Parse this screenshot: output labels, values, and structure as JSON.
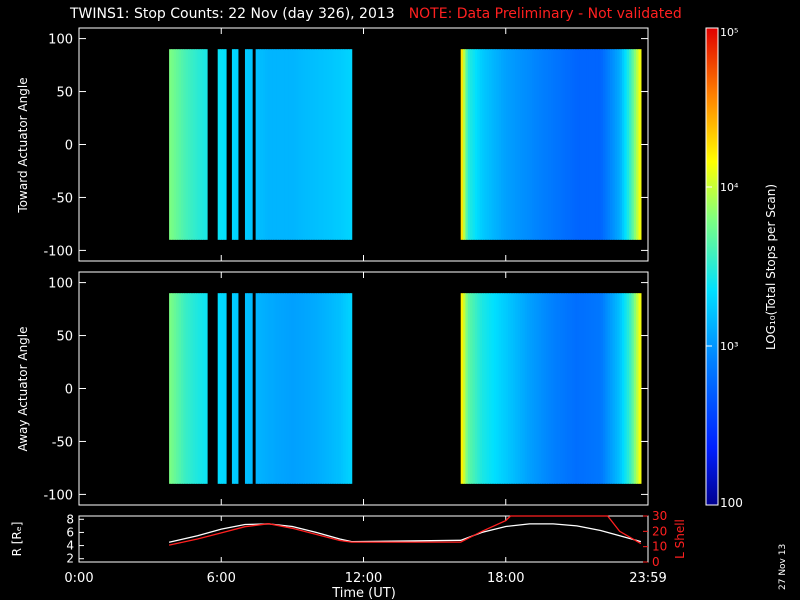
{
  "title": {
    "main": "TWINS1: Stop Counts: 22 Nov (day 326), 2013",
    "note": "NOTE: Data Preliminary - Not validated"
  },
  "stamp": "27 Nov 13",
  "colors": {
    "background": "#000000",
    "axes": "#ffffff",
    "note": "#ff2020",
    "l_shell": "#ff2020",
    "r_line": "#ffffff"
  },
  "chart_data": [
    {
      "type": "heatmap",
      "panel": "toward",
      "ylabel": "Toward Actuator Angle",
      "ylim": [
        -110,
        110
      ],
      "yticks": [
        100,
        50,
        0,
        -50,
        -100
      ],
      "xlim": [
        0,
        24
      ],
      "data_extent": {
        "angle": [
          -90,
          90
        ]
      },
      "coverage_hours": [
        [
          3.8,
          5.4
        ],
        [
          5.85,
          6.2
        ],
        [
          6.45,
          6.7
        ],
        [
          7.0,
          7.3
        ],
        [
          7.45,
          11.5
        ],
        [
          16.1,
          23.7
        ]
      ],
      "gaps_hours": [
        [
          5.4,
          5.85
        ],
        [
          6.2,
          6.45
        ],
        [
          6.7,
          7.0
        ],
        [
          7.3,
          7.45
        ]
      ],
      "log_intensity_profile": {
        "hours": [
          3.8,
          4.5,
          5.3,
          6.2,
          7.0,
          8.0,
          9.0,
          10.0,
          11.0,
          11.5,
          16.1,
          16.4,
          17.0,
          18.0,
          19.0,
          20.0,
          21.0,
          22.0,
          22.8,
          23.3,
          23.7
        ],
        "log_counts": [
          3.8,
          3.6,
          3.45,
          3.35,
          3.25,
          3.15,
          3.15,
          3.2,
          3.25,
          3.3,
          4.4,
          3.5,
          3.25,
          3.05,
          2.95,
          2.85,
          2.75,
          2.75,
          3.1,
          3.6,
          4.2
        ]
      }
    },
    {
      "type": "heatmap",
      "panel": "away",
      "ylabel": "Away Actuator Angle",
      "ylim": [
        -110,
        110
      ],
      "yticks": [
        100,
        50,
        0,
        -50,
        -100
      ],
      "xlim": [
        0,
        24
      ],
      "data_extent": {
        "angle": [
          -90,
          90
        ]
      },
      "coverage_hours": [
        [
          3.8,
          5.4
        ],
        [
          5.85,
          6.2
        ],
        [
          6.45,
          6.7
        ],
        [
          7.0,
          7.3
        ],
        [
          7.45,
          11.5
        ],
        [
          16.1,
          23.7
        ]
      ],
      "gaps_hours": [
        [
          5.4,
          5.85
        ],
        [
          6.2,
          6.45
        ],
        [
          6.7,
          7.0
        ],
        [
          7.3,
          7.45
        ]
      ],
      "log_intensity_profile": {
        "hours": [
          3.8,
          4.5,
          5.3,
          6.2,
          7.0,
          8.0,
          9.0,
          10.0,
          11.0,
          11.5,
          16.1,
          16.4,
          17.0,
          18.0,
          19.0,
          20.0,
          21.0,
          22.0,
          22.8,
          23.3,
          23.7
        ],
        "log_counts": [
          3.8,
          3.55,
          3.4,
          3.3,
          3.2,
          3.1,
          3.05,
          3.1,
          3.2,
          3.3,
          4.3,
          3.7,
          3.45,
          3.25,
          3.05,
          2.9,
          2.8,
          2.85,
          3.2,
          3.6,
          4.2
        ]
      }
    },
    {
      "type": "line",
      "panel": "orbit",
      "ylabel": "R [Rₑ]",
      "ylabel2": "L Shell",
      "xlabel": "Time (UT)",
      "xticks": [
        "0:00",
        "6:00",
        "12:00",
        "18:00",
        "23:59"
      ],
      "xtick_hours": [
        0,
        6,
        12,
        18,
        24
      ],
      "ylim": [
        1.5,
        8.5
      ],
      "yticks": [
        8,
        6,
        4,
        2
      ],
      "ylim2": [
        0,
        30
      ],
      "yticks2": [
        30,
        20,
        10,
        0
      ],
      "series": [
        {
          "name": "R",
          "axis": "left",
          "x": [
            3.8,
            5.0,
            6.0,
            7.0,
            8.0,
            9.0,
            10.0,
            11.0,
            11.5,
            16.1,
            17.0,
            18.0,
            19.0,
            20.0,
            21.0,
            22.0,
            23.0,
            23.7
          ],
          "y": [
            4.5,
            5.5,
            6.5,
            7.2,
            7.3,
            6.9,
            6.0,
            5.0,
            4.6,
            4.8,
            6.0,
            6.9,
            7.3,
            7.3,
            7.0,
            6.3,
            5.3,
            4.6
          ]
        },
        {
          "name": "L Shell",
          "axis": "right",
          "x": [
            3.8,
            5.0,
            6.0,
            7.0,
            8.0,
            9.0,
            10.0,
            11.0,
            11.5,
            16.1,
            17.0,
            18.0,
            18.2,
            22.3,
            22.8,
            23.7
          ],
          "y": [
            11,
            15,
            19,
            23,
            25,
            22,
            18,
            14,
            13,
            13,
            20,
            27,
            30,
            30,
            20,
            12
          ]
        }
      ]
    },
    {
      "type": "colorbar",
      "label": "LOG₁₀(Total Stops per Scan)",
      "scale": "log",
      "range": [
        100,
        100000
      ],
      "tick_labels": [
        "10⁵",
        "10⁴",
        "10³",
        "100"
      ]
    }
  ]
}
